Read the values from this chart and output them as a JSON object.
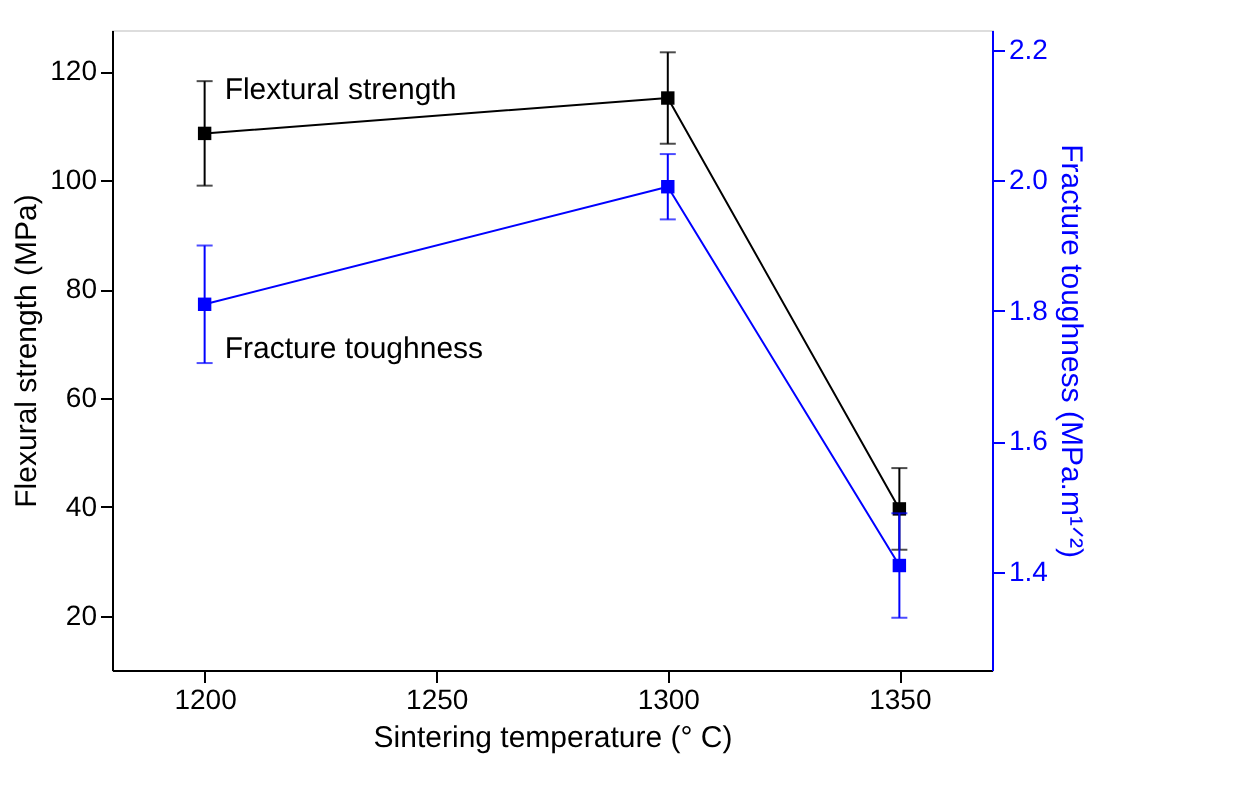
{
  "chart_data": {
    "type": "line",
    "xlabel": "Sintering temperature (° C)",
    "ylabel": "Flexural strength (MPa)",
    "y2label": "Fracture toughness (MPa.m¹ᐟ²)",
    "x": [
      1200,
      1300,
      1350
    ],
    "series": [
      {
        "name": "Flextural strength",
        "color": "#000000",
        "values": [
          108.6,
          115.1,
          39.6
        ],
        "errors": [
          9.6,
          8.4,
          7.5
        ]
      },
      {
        "name": "Fracture toughness",
        "color": "#0000ff",
        "axis": "y2",
        "values": [
          1.81,
          1.99,
          1.41
        ],
        "errors": [
          0.09,
          0.05,
          0.08
        ]
      }
    ],
    "xlim": [
      1180,
      1370
    ],
    "xticks": [
      1200,
      1250,
      1300,
      1350
    ],
    "ylim": [
      10,
      127.6
    ],
    "yticks": [
      20,
      40,
      60,
      80,
      100,
      120
    ],
    "y2lim": [
      1.25,
      2.23
    ],
    "y2ticks": [
      1.4,
      1.6,
      1.8,
      {
        "value": 2.0,
        "label": "2.0"
      },
      2.2
    ],
    "marker": "square",
    "line_style": "solid",
    "grid": false,
    "legend": false
  }
}
